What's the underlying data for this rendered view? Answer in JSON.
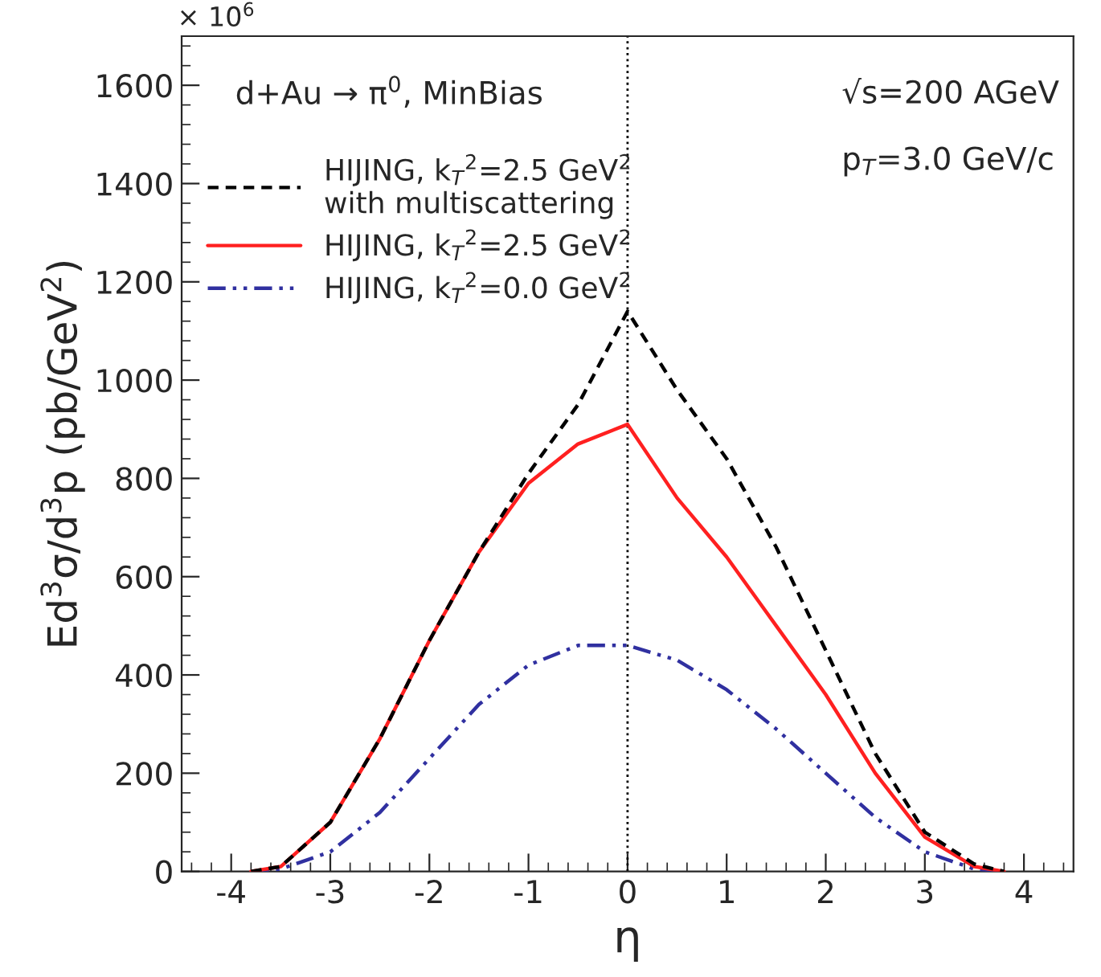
{
  "chart_data": {
    "type": "line",
    "xlabel": "η",
    "ylabel": "Ed$^{3}$σ/d$^{3}$p (pb/GeV$^{2}$)",
    "x": [
      -3.8,
      -3.5,
      -3,
      -2.5,
      -2,
      -1.5,
      -1,
      -0.5,
      0,
      0.5,
      1,
      1.5,
      2,
      2.5,
      3,
      3.5,
      3.8
    ],
    "series": [
      {
        "name": "HIJING, k$_{T}$$^{2}$=2.5 GeV$^{2}$\nwith multiscattering",
        "color": "#000000",
        "line_style": "dashed",
        "values": [
          0,
          10,
          100,
          270,
          470,
          650,
          810,
          950,
          1140,
          980,
          840,
          660,
          450,
          240,
          80,
          15,
          0
        ]
      },
      {
        "name": "HIJING, k$_{T}$$^{2}$=2.5 GeV$^{2}$",
        "color": "#ff2020",
        "line_style": "solid",
        "values": [
          0,
          10,
          100,
          270,
          470,
          650,
          790,
          870,
          910,
          760,
          640,
          500,
          360,
          200,
          70,
          10,
          0
        ]
      },
      {
        "name": "HIJING, k$_{T}$$^{2}$=0.0 GeV$^{2}$",
        "color": "#3030a0",
        "line_style": "dashdot",
        "values": [
          0,
          5,
          40,
          120,
          230,
          340,
          420,
          460,
          460,
          430,
          370,
          290,
          200,
          110,
          40,
          5,
          0
        ]
      }
    ],
    "xlim": [
      -4.5,
      4.5
    ],
    "ylim": [
      0,
      1700
    ],
    "xticks": [
      -4,
      -3,
      -2,
      -1,
      0,
      1,
      2,
      3,
      4
    ],
    "yticks": [
      0,
      200,
      400,
      600,
      800,
      1000,
      1200,
      1400,
      1600
    ],
    "ref_lines": [
      {
        "axis": "x",
        "value": 0,
        "color": "#000000",
        "line_style": "dotted"
      }
    ],
    "legend": "top left",
    "grid": false,
    "annotations": [
      "× 10$^{6}$",
      "d+Au → π$^{0}$, MinBias",
      "√s=200 AGeV",
      "p$_{T}$=3.0 GeV/c"
    ]
  }
}
